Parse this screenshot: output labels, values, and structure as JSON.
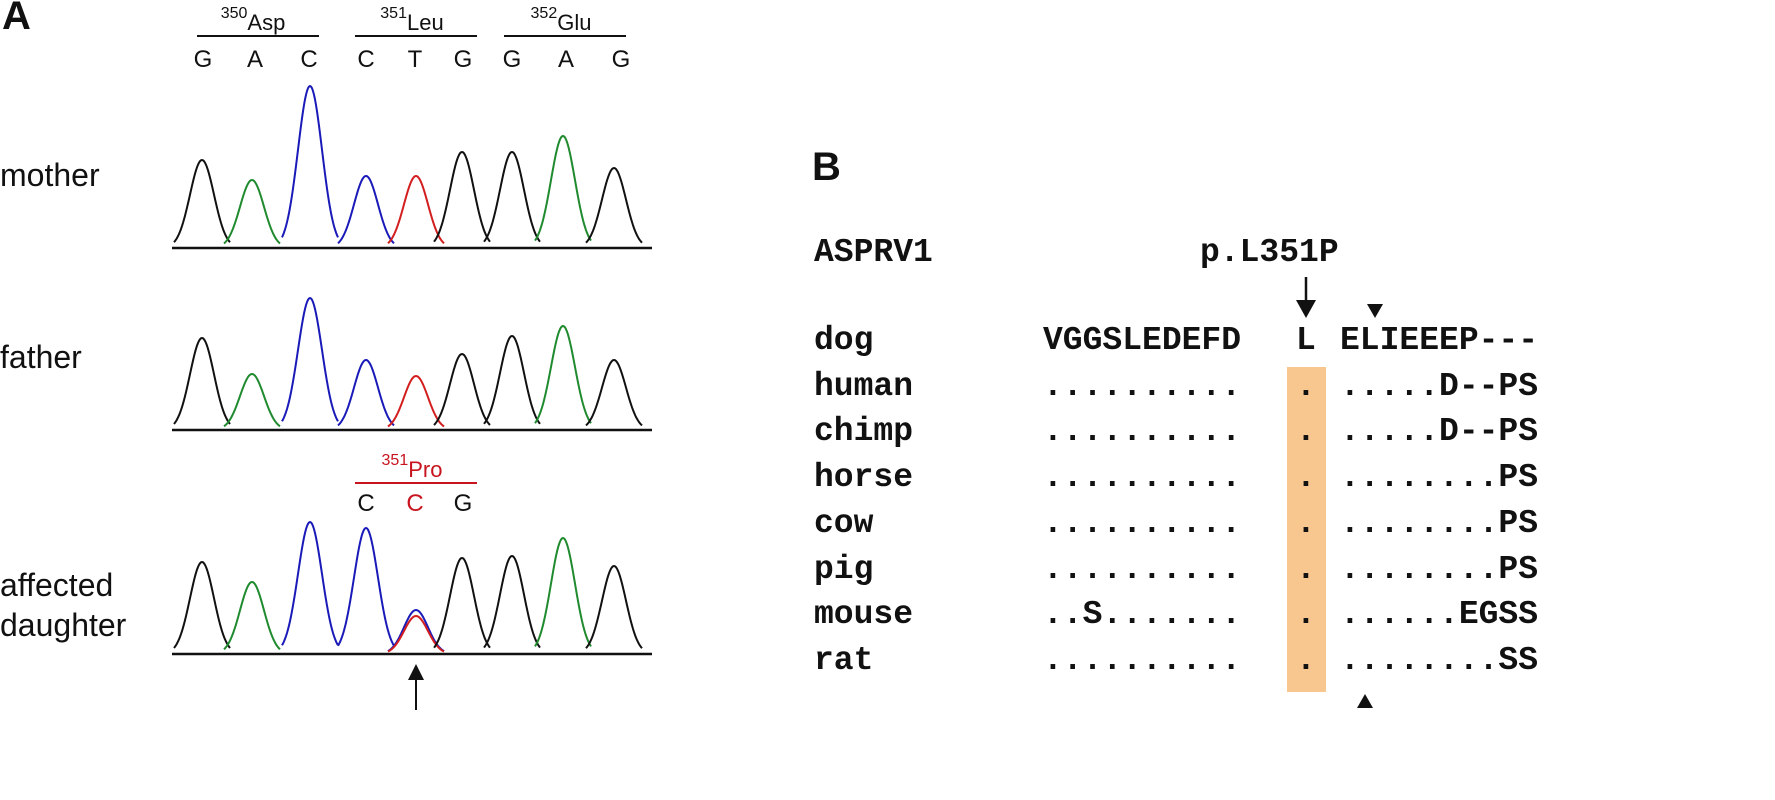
{
  "panel_a": {
    "label": "A",
    "codons": [
      {
        "number": "350",
        "name": "Asp"
      },
      {
        "number": "351",
        "name": "Leu"
      },
      {
        "number": "352",
        "name": "Glu"
      }
    ],
    "bases": [
      "G",
      "A",
      "C",
      "C",
      "T",
      "G",
      "G",
      "A",
      "G"
    ],
    "traces": [
      {
        "label": "mother"
      },
      {
        "label": "father"
      },
      {
        "label_line1": "affected",
        "label_line2": "daughter"
      }
    ],
    "mutant_codon": {
      "number": "351",
      "name": "Pro",
      "bases": [
        "C",
        "C",
        "G"
      ]
    }
  },
  "panel_b": {
    "label": "B",
    "gene": "ASPRV1",
    "mutation": "p.L351P",
    "alignment": [
      {
        "species": "dog",
        "left": "VGGSLEDEFD",
        "site": "L",
        "right": "ELIEEEP---"
      },
      {
        "species": "human",
        "left": "..........",
        "site": ".",
        "right": ".....D--PS"
      },
      {
        "species": "chimp",
        "left": "..........",
        "site": ".",
        "right": ".....D--PS"
      },
      {
        "species": "horse",
        "left": "..........",
        "site": ".",
        "right": "........PS"
      },
      {
        "species": "cow",
        "left": "..........",
        "site": ".",
        "right": "........PS"
      },
      {
        "species": "pig",
        "left": "..........",
        "site": ".",
        "right": "........PS"
      },
      {
        "species": "mouse",
        "left": "..S.......",
        "site": ".",
        "right": "......EGSS"
      },
      {
        "species": "rat",
        "left": "..........",
        "site": ".",
        "right": "........SS"
      }
    ]
  },
  "colors": {
    "trace_black": "#111111",
    "trace_green": "#1f8a2e",
    "trace_blue": "#1a1ab8",
    "trace_red": "#d21e1e",
    "mutation_red": "#c8141e",
    "highlight": "#f7c78f"
  }
}
